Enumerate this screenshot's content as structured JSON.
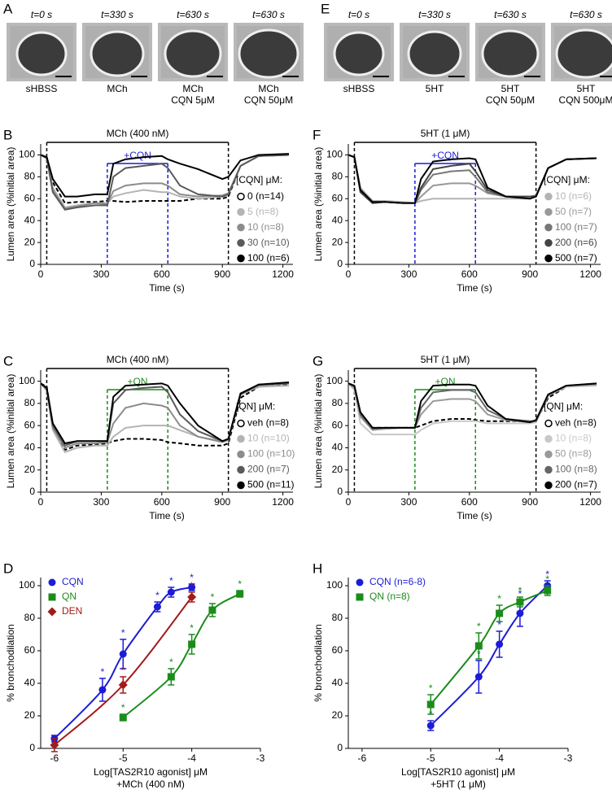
{
  "image_panels": [
    {
      "letter": "A",
      "images": [
        {
          "time": "t=0 s",
          "caption": [
            "sHBSS"
          ]
        },
        {
          "time": "t=330 s",
          "caption": [
            "MCh"
          ]
        },
        {
          "time": "t=630 s",
          "caption": [
            "MCh",
            "CQN 5μM"
          ]
        },
        {
          "time": "t=630 s",
          "caption": [
            "MCh",
            "CQN 50μM"
          ]
        }
      ]
    },
    {
      "letter": "E",
      "images": [
        {
          "time": "t=0 s",
          "caption": [
            "sHBSS"
          ]
        },
        {
          "time": "t=330 s",
          "caption": [
            "5HT"
          ]
        },
        {
          "time": "t=630 s",
          "caption": [
            "5HT",
            "CQN 50μM"
          ]
        },
        {
          "time": "t=630 s",
          "caption": [
            "5HT",
            "CQN 500μM"
          ]
        }
      ]
    }
  ],
  "chart_data": [
    {
      "type": "line",
      "letter": "B",
      "xlabel": [
        "Time (s)"
      ],
      "ylabel": "Lumen area (%initial area)",
      "xlim": [
        0,
        1250
      ],
      "ylim": [
        0,
        110
      ],
      "xticks": [
        0,
        300,
        600,
        900,
        1200
      ],
      "yticks": [
        0,
        20,
        40,
        60,
        80,
        100
      ],
      "treatment": {
        "label": "MCh (400 nM)",
        "start": 30,
        "end": 930
      },
      "addition": {
        "label": "+CQN",
        "start": 330,
        "end": 630,
        "color": "#1c1cd6"
      },
      "legend_title": "[CQN] μM:",
      "x": [
        0,
        30,
        60,
        120,
        180,
        270,
        330,
        360,
        420,
        510,
        600,
        630,
        690,
        780,
        900,
        930,
        990,
        1080,
        1230
      ],
      "series": [
        {
          "name": "0 (n=14)",
          "color": "#000000",
          "dash": true,
          "values": [
            100,
            98,
            75,
            56,
            57,
            57,
            58,
            58,
            57,
            58,
            58,
            58,
            58,
            60,
            60,
            62,
            90,
            99,
            100
          ]
        },
        {
          "name": "5 (n=8)",
          "color": "#b4b4b4",
          "values": [
            100,
            98,
            70,
            52,
            54,
            56,
            56,
            62,
            65,
            68,
            66,
            66,
            62,
            60,
            62,
            64,
            90,
            99,
            100
          ]
        },
        {
          "name": "10 (n=8)",
          "color": "#8c8c8c",
          "values": [
            100,
            97,
            68,
            51,
            53,
            56,
            55,
            67,
            72,
            74,
            74,
            72,
            64,
            62,
            63,
            65,
            90,
            99,
            100
          ]
        },
        {
          "name": "30 (n=10)",
          "color": "#5a5a5a",
          "values": [
            100,
            97,
            66,
            50,
            52,
            54,
            54,
            80,
            88,
            90,
            92,
            88,
            72,
            64,
            62,
            64,
            90,
            99,
            100
          ]
        },
        {
          "name": "100 (n=6)",
          "color": "#000000",
          "values": [
            100,
            98,
            78,
            62,
            62,
            64,
            64,
            92,
            96,
            98,
            99,
            96,
            92,
            87,
            78,
            80,
            95,
            100,
            101
          ]
        }
      ]
    },
    {
      "type": "line",
      "letter": "F",
      "xlabel": [
        "Time (s)"
      ],
      "ylabel": "Lumen area (%initial area)",
      "xlim": [
        0,
        1250
      ],
      "ylim": [
        0,
        110
      ],
      "xticks": [
        0,
        300,
        600,
        900,
        1200
      ],
      "yticks": [
        0,
        20,
        40,
        60,
        80,
        100
      ],
      "treatment": {
        "label": "5HT (1 μM)",
        "start": 30,
        "end": 930
      },
      "addition": {
        "label": "+CQN",
        "start": 330,
        "end": 630,
        "color": "#1c1cd6"
      },
      "legend_title": "[CQN] μM:",
      "x": [
        0,
        30,
        60,
        120,
        180,
        270,
        330,
        360,
        420,
        510,
        600,
        630,
        690,
        780,
        900,
        930,
        990,
        1080,
        1230
      ],
      "series": [
        {
          "name": "10 (n=6)",
          "color": "#b4b4b4",
          "values": [
            100,
            98,
            70,
            58,
            58,
            57,
            56,
            58,
            60,
            60,
            60,
            60,
            60,
            60,
            60,
            62,
            88,
            96,
            97
          ]
        },
        {
          "name": "50 (n=7)",
          "color": "#999999",
          "values": [
            100,
            98,
            68,
            57,
            57,
            56,
            56,
            62,
            72,
            74,
            74,
            72,
            65,
            62,
            62,
            63,
            88,
            96,
            97
          ]
        },
        {
          "name": "100 (n=7)",
          "color": "#777777",
          "values": [
            100,
            98,
            66,
            56,
            57,
            56,
            56,
            68,
            82,
            85,
            86,
            80,
            66,
            62,
            62,
            63,
            88,
            96,
            97
          ]
        },
        {
          "name": "200 (n=6)",
          "color": "#444444",
          "values": [
            100,
            98,
            66,
            56,
            57,
            56,
            56,
            70,
            87,
            90,
            92,
            85,
            68,
            62,
            62,
            62,
            88,
            96,
            97
          ]
        },
        {
          "name": "500 (n=7)",
          "color": "#000000",
          "values": [
            100,
            98,
            68,
            57,
            57,
            56,
            56,
            78,
            94,
            96,
            97,
            96,
            70,
            62,
            60,
            62,
            88,
            96,
            97
          ]
        }
      ]
    },
    {
      "type": "line",
      "letter": "C",
      "xlabel": [
        "Time (s)"
      ],
      "ylabel": "Lumen area (%initial area)",
      "xlim": [
        0,
        1250
      ],
      "ylim": [
        0,
        110
      ],
      "xticks": [
        0,
        300,
        600,
        900,
        1200
      ],
      "yticks": [
        0,
        20,
        40,
        60,
        80,
        100
      ],
      "treatment": {
        "label": "MCh (400 nM)",
        "start": 30,
        "end": 930
      },
      "addition": {
        "label": "+QN",
        "start": 330,
        "end": 630,
        "color": "#1a8c1a"
      },
      "legend_title": "[QN] μM:",
      "x": [
        0,
        30,
        60,
        120,
        180,
        270,
        330,
        360,
        420,
        510,
        600,
        630,
        690,
        780,
        900,
        930,
        990,
        1080,
        1230
      ],
      "series": [
        {
          "name": "veh (n=8)",
          "color": "#000000",
          "dash": true,
          "values": [
            98,
            95,
            60,
            38,
            42,
            43,
            44,
            46,
            48,
            48,
            47,
            45,
            44,
            42,
            42,
            44,
            85,
            95,
            97
          ]
        },
        {
          "name": "10 (n=10)",
          "color": "#b4b4b4",
          "values": [
            98,
            92,
            56,
            36,
            40,
            42,
            42,
            50,
            58,
            60,
            60,
            60,
            56,
            50,
            46,
            48,
            88,
            95,
            96
          ]
        },
        {
          "name": "100 (n=10)",
          "color": "#8c8c8c",
          "values": [
            98,
            92,
            58,
            40,
            44,
            44,
            45,
            62,
            76,
            80,
            78,
            76,
            60,
            50,
            45,
            47,
            88,
            96,
            98
          ]
        },
        {
          "name": "200 (n=7)",
          "color": "#5a5a5a",
          "values": [
            98,
            93,
            60,
            42,
            46,
            46,
            46,
            80,
            92,
            94,
            95,
            90,
            70,
            55,
            46,
            48,
            88,
            97,
            98
          ]
        },
        {
          "name": "500 (n=11)",
          "color": "#000000",
          "values": [
            98,
            94,
            62,
            44,
            46,
            46,
            46,
            86,
            96,
            97,
            98,
            96,
            80,
            60,
            46,
            48,
            89,
            97,
            99
          ]
        }
      ]
    },
    {
      "type": "line",
      "letter": "G",
      "xlabel": [
        "Time (s)"
      ],
      "ylabel": "Lumen area (%initial area)",
      "xlim": [
        0,
        1250
      ],
      "ylim": [
        0,
        110
      ],
      "xticks": [
        0,
        300,
        600,
        900,
        1200
      ],
      "yticks": [
        0,
        20,
        40,
        60,
        80,
        100
      ],
      "treatment": {
        "label": "5HT (1 μM)",
        "start": 30,
        "end": 930
      },
      "addition": {
        "label": "+QN",
        "start": 330,
        "end": 630,
        "color": "#1a8c1a"
      },
      "legend_title": "[QN] μM:",
      "x": [
        0,
        30,
        60,
        120,
        180,
        270,
        330,
        360,
        420,
        510,
        600,
        630,
        690,
        780,
        900,
        930,
        990,
        1080,
        1230
      ],
      "series": [
        {
          "name": "veh (n=8)",
          "color": "#000000",
          "dash": true,
          "values": [
            98,
            96,
            70,
            58,
            58,
            58,
            58,
            60,
            64,
            66,
            66,
            65,
            64,
            64,
            64,
            64,
            85,
            95,
            97
          ]
        },
        {
          "name": "10 (n=8)",
          "color": "#c8c8c8",
          "values": [
            98,
            92,
            62,
            52,
            52,
            52,
            52,
            56,
            62,
            64,
            64,
            64,
            62,
            62,
            62,
            63,
            87,
            95,
            96
          ]
        },
        {
          "name": "50 (n=8)",
          "color": "#999999",
          "values": [
            98,
            94,
            68,
            56,
            57,
            58,
            58,
            70,
            82,
            84,
            84,
            82,
            70,
            65,
            63,
            64,
            87,
            96,
            97
          ]
        },
        {
          "name": "100 (n=8)",
          "color": "#666666",
          "values": [
            98,
            95,
            70,
            57,
            58,
            58,
            58,
            76,
            90,
            92,
            92,
            90,
            74,
            66,
            64,
            64,
            88,
            96,
            98
          ]
        },
        {
          "name": "200 (n=7)",
          "color": "#000000",
          "values": [
            98,
            96,
            72,
            58,
            58,
            58,
            58,
            82,
            96,
            97,
            97,
            96,
            78,
            66,
            63,
            65,
            88,
            96,
            98
          ]
        }
      ]
    },
    {
      "type": "dose",
      "letter": "D",
      "xlabel": [
        "Log[TAS2R10 agonist] μM",
        "+MCh (400 nM)"
      ],
      "ylabel": "% bronchodilation",
      "xlim": [
        -6.2,
        -3
      ],
      "ylim": [
        0,
        105
      ],
      "xticks": [
        -6,
        -5,
        -4,
        -3
      ],
      "yticks": [
        0,
        20,
        40,
        60,
        80,
        100
      ],
      "series": [
        {
          "name": "CQN",
          "color": "#1c1cd6",
          "marker": "circle",
          "x": [
            -6,
            -5.3,
            -5,
            -4.5,
            -4.3,
            -4
          ],
          "values": [
            6,
            36,
            58,
            87,
            96,
            99
          ],
          "errors": [
            2,
            7,
            9,
            3,
            3,
            2
          ],
          "stars": [
            null,
            "*",
            "*",
            "*",
            "*",
            "*"
          ]
        },
        {
          "name": "QN",
          "color": "#1a8c1a",
          "marker": "square",
          "x": [
            -5,
            -4.3,
            -4,
            -3.7,
            -3.3
          ],
          "values": [
            19,
            44,
            64,
            85,
            95
          ],
          "errors": [
            2,
            5,
            6,
            4,
            2
          ],
          "stars": [
            "*",
            "*",
            "*",
            "*",
            "*"
          ]
        },
        {
          "name": "DEN",
          "color": "#a31a1a",
          "marker": "diamond",
          "x": [
            -6,
            -5,
            -4
          ],
          "values": [
            2,
            39,
            93
          ],
          "errors": [
            4,
            5,
            3
          ],
          "stars": [
            null,
            "*",
            "*"
          ]
        }
      ]
    },
    {
      "type": "dose",
      "letter": "H",
      "xlabel": [
        "Log[TAS2R10 agonist] μM",
        "+5HT (1 μM)"
      ],
      "ylabel": "% bronchodilation",
      "xlim": [
        -6.2,
        -3
      ],
      "ylim": [
        0,
        105
      ],
      "xticks": [
        -6,
        -5,
        -4,
        -3
      ],
      "yticks": [
        0,
        20,
        40,
        60,
        80,
        100
      ],
      "series": [
        {
          "name": "CQN (n=6-8)",
          "color": "#1c1cd6",
          "marker": "circle",
          "x": [
            -5,
            -4.3,
            -4,
            -3.7,
            -3.3
          ],
          "values": [
            14,
            44,
            64,
            83,
            100
          ],
          "errors": [
            3,
            10,
            8,
            8,
            3
          ],
          "stars": [
            "*",
            "*",
            "*",
            "*",
            "*"
          ]
        },
        {
          "name": "QN (n=8)",
          "color": "#1a8c1a",
          "marker": "square",
          "x": [
            -5,
            -4.3,
            -4,
            -3.7,
            -3.3
          ],
          "values": [
            27,
            63,
            83,
            90,
            97
          ],
          "errors": [
            6,
            8,
            5,
            3,
            3
          ],
          "stars": [
            "*",
            "*",
            "*",
            "*",
            "*"
          ]
        }
      ]
    }
  ]
}
